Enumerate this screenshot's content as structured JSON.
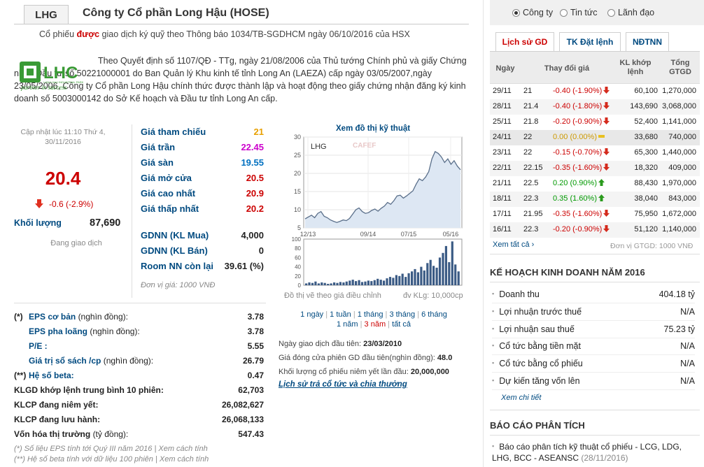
{
  "header": {
    "ticker": "LHG",
    "company": "Công ty Cổ phần Long Hậu (HOSE)",
    "margin_prefix": "Cổ phiếu",
    "margin_bold": "được",
    "margin_suffix": "giao dịch ký quỹ theo Thông báo 1034/TB-SGDHCM ngày 06/10/2016 của HSX",
    "intro": "Theo Quyết định số 1107/QĐ - TTg, ngày 21/08/2006 của Thủ tướng Chính phủ và giấy Chứng nhận Đầu tư số 50221000001 do Ban Quản lý Khu kinh tế tỉnh Long An (LAEZA) cấp ngày 03/05/2007,ngày 23/05/2006, Công ty Cổ phần Long Hậu chính thức được thành lập và hoạt động theo giấy chứng nhận đăng ký kinh doanh số 5003000142 do Sở Kế hoạch và Đầu tư tỉnh Long An cấp.",
    "logo_text": "LHC",
    "logo_sub": "LONG HAU INDUSTRIAL PARK",
    "logo_tagline": "partner in success"
  },
  "quote": {
    "updated": "Cập nhật lúc 11:10 Thứ 4, 30/11/2016",
    "price": "20.4",
    "change": "-0.6 (-2.9%)",
    "volume_label": "Khối lượng",
    "volume": "87,690",
    "trading_status": "Đang giao dịch"
  },
  "prices": [
    {
      "label": "Giá tham chiếu",
      "value": "21",
      "color": "#e8a000"
    },
    {
      "label": "Giá trần",
      "value": "22.45",
      "color": "#cc00cc"
    },
    {
      "label": "Giá sàn",
      "value": "19.55",
      "color": "#0070c0"
    },
    {
      "label": "Giá mở cửa",
      "value": "20.5",
      "color": "#cc0000"
    },
    {
      "label": "Giá cao nhất",
      "value": "20.9",
      "color": "#cc0000"
    },
    {
      "label": "Giá thấp nhất",
      "value": "20.2",
      "color": "#cc0000"
    }
  ],
  "foreign": [
    {
      "label": "GDNN (KL Mua)",
      "value": "4,000"
    },
    {
      "label": "GDNN (KL Bán)",
      "value": "0"
    },
    {
      "label": "Room NN còn lại",
      "value": "39.61 (%)"
    }
  ],
  "unit_note": "Đơn vị giá: 1000 VNĐ",
  "fundamentals": [
    {
      "prefix": "(*)",
      "label": "EPS cơ bản",
      "unit": "(nghìn đồng):",
      "value": "3.78"
    },
    {
      "prefix": "",
      "label": "EPS pha loãng",
      "unit": "(nghìn đồng):",
      "value": "3.78"
    },
    {
      "prefix": "",
      "label": "P/E :",
      "unit": "",
      "value": "5.55"
    },
    {
      "prefix": "",
      "label": "Giá trị sổ sách /cp",
      "unit": "(nghìn đồng):",
      "value": "26.79"
    },
    {
      "prefix": "(**)",
      "label": "Hệ số beta:",
      "unit": "",
      "value": "0.47"
    },
    {
      "prefix": "",
      "label": "KLGD khớp lệnh trung bình 10 phiên:",
      "unit": "",
      "value": "62,703"
    },
    {
      "prefix": "",
      "label": "KLCP đang niêm yết:",
      "unit": "",
      "value": "26,082,627"
    },
    {
      "prefix": "",
      "label": "KLCP đang lưu hành:",
      "unit": "",
      "value": "26,068,133"
    },
    {
      "prefix": "",
      "label": "Vốn hóa thị trường",
      "unit": "(tỷ đồng):",
      "value": "547.43"
    }
  ],
  "fund_notes": [
    "(*) Số liệu EPS tính tới Quý III năm 2016 | Xem cách tính",
    "(**) Hệ số beta tính với dữ liệu 100 phiên | Xem cách tính"
  ],
  "chart": {
    "title": "Xem đồ thị kỹ thuật",
    "symbol": "LHG",
    "watermark": "CAFEF",
    "foot_left": "Đồ thị vẽ theo giá điều chỉnh",
    "foot_right": "đv KLg: 10,000cp",
    "periods_row1": [
      "1 ngày",
      "1 tuần",
      "1 tháng",
      "3 tháng",
      "6 tháng"
    ],
    "periods_row2": [
      "1 năm",
      "3 năm",
      "tất cả"
    ],
    "active_period": "3 năm"
  },
  "chart_data": {
    "type": "line",
    "title": "LHG",
    "y_ticks": [
      "30",
      "25",
      "20",
      "15",
      "10",
      "5"
    ],
    "ylim": [
      5,
      30
    ],
    "x_ticks": [
      "12/13",
      "09/14",
      "07/15",
      "05/16"
    ],
    "vol_ticks": [
      "100",
      "80",
      "60",
      "40",
      "20",
      "0"
    ],
    "vol_ylim": [
      0,
      100
    ],
    "prices": [
      7.5,
      8.0,
      8.5,
      7.8,
      9.0,
      9.5,
      8.2,
      7.8,
      7.2,
      6.8,
      6.5,
      6.8,
      7.2,
      7.0,
      7.6,
      8.8,
      10.0,
      10.5,
      9.5,
      9.0,
      9.2,
      9.8,
      10.2,
      9.6,
      10.4,
      11.0,
      12.0,
      11.5,
      12.5,
      13.8,
      14.0,
      13.2,
      13.8,
      14.5,
      15.2,
      17.0,
      18.5,
      18.0,
      19.0,
      20.5,
      24.0,
      26.0,
      25.5,
      24.5,
      23.0,
      24.0,
      22.5,
      23.5,
      22.0,
      21.0
    ],
    "volumes": [
      4,
      6,
      5,
      8,
      4,
      6,
      5,
      3,
      4,
      6,
      5,
      7,
      6,
      8,
      10,
      12,
      9,
      11,
      7,
      8,
      10,
      9,
      11,
      14,
      12,
      10,
      15,
      18,
      16,
      22,
      20,
      25,
      18,
      26,
      30,
      35,
      28,
      40,
      32,
      48,
      55,
      42,
      38,
      60,
      70,
      85,
      50,
      95,
      45,
      30
    ]
  },
  "listing": [
    {
      "label": "Ngày giao dịch đầu tiên:",
      "value": "23/03/2010"
    },
    {
      "label": "Giá đóng cửa phiên GD đầu tiên(nghìn đồng):",
      "value": "48.0"
    },
    {
      "label": "Khối lượng cổ phiếu niêm yết lần đầu:",
      "value": "20,000,000"
    }
  ],
  "dividend_link": "Lịch sử trả cổ tức và chia thưởng",
  "radios": [
    {
      "label": "Công ty",
      "checked": true
    },
    {
      "label": "Tin tức",
      "checked": false
    },
    {
      "label": "Lãnh đạo",
      "checked": false
    }
  ],
  "tabs": [
    "Lịch sử GD",
    "TK Đặt lệnh",
    "NĐTNN"
  ],
  "history_head": {
    "date": "Ngày",
    "change": "Thay đổi giá",
    "volume": "KL khớp lệnh",
    "value": "Tổng GTGD"
  },
  "history": [
    {
      "date": "29/11",
      "price": "21",
      "change": "-0.40 (-1.90%)",
      "dir": "down",
      "volume": "60,100",
      "value": "1,270,000"
    },
    {
      "date": "28/11",
      "price": "21.4",
      "change": "-0.40 (-1.80%)",
      "dir": "down",
      "volume": "143,690",
      "value": "3,068,000"
    },
    {
      "date": "25/11",
      "price": "21.8",
      "change": "-0.20 (-0.90%)",
      "dir": "down",
      "volume": "52,400",
      "value": "1,141,000"
    },
    {
      "date": "24/11",
      "price": "22",
      "change": "0.00 (0.00%)",
      "dir": "flat",
      "volume": "33,680",
      "value": "740,000"
    },
    {
      "date": "23/11",
      "price": "22",
      "change": "-0.15 (-0.70%)",
      "dir": "down",
      "volume": "65,300",
      "value": "1,440,000"
    },
    {
      "date": "22/11",
      "price": "22.15",
      "change": "-0.35 (-1.60%)",
      "dir": "down",
      "volume": "18,320",
      "value": "409,000"
    },
    {
      "date": "21/11",
      "price": "22.5",
      "change": "0.20 (0.90%)",
      "dir": "up",
      "volume": "88,430",
      "value": "1,970,000"
    },
    {
      "date": "18/11",
      "price": "22.3",
      "change": "0.35 (1.60%)",
      "dir": "up",
      "volume": "38,040",
      "value": "843,000"
    },
    {
      "date": "17/11",
      "price": "21.95",
      "change": "-0.35 (-1.60%)",
      "dir": "down",
      "volume": "75,950",
      "value": "1,672,000"
    },
    {
      "date": "16/11",
      "price": "22.3",
      "change": "-0.20 (-0.90%)",
      "dir": "down",
      "volume": "51,120",
      "value": "1,140,000"
    }
  ],
  "see_all": "Xem tất cả",
  "gtgd_unit": "Đơn vị GTGD: 1000 VNĐ",
  "plan": {
    "title": "KẾ HOẠCH KINH DOANH NĂM 2016",
    "rows": [
      {
        "label": "Doanh thu",
        "value": "404.18 tỷ"
      },
      {
        "label": "Lợi nhuận trước thuế",
        "value": "N/A"
      },
      {
        "label": "Lợi nhuận sau thuế",
        "value": "75.23 tỷ"
      },
      {
        "label": "Cổ tức bằng tiền mặt",
        "value": "N/A"
      },
      {
        "label": "Cổ tức bằng cổ phiếu",
        "value": "N/A"
      },
      {
        "label": "Dự kiến tăng vốn lên",
        "value": "N/A"
      }
    ],
    "detail": "Xem chi tiết"
  },
  "analysis": {
    "title": "BÁO CÁO PHÂN TÍCH",
    "item": "Báo cáo phân tích kỹ thuật cổ phiếu - LCG, LDG, LHG, BCC - ASEANSC",
    "date": "(28/11/2016)"
  }
}
